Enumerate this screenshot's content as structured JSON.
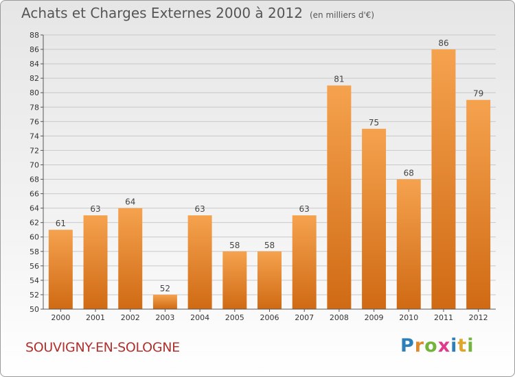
{
  "title": "Achats et Charges Externes 2000 à 2012",
  "subtitle": "(en milliers d'€)",
  "city": "SOUVIGNY-EN-SOLOGNE",
  "logo": "Proxiti",
  "colors": {
    "bar_top": "#f5a24e",
    "bar_bottom": "#d06a14",
    "city": "#b0312e",
    "grid": "#c8c8c8"
  },
  "chart_data": {
    "type": "bar",
    "title": "Achats et Charges Externes 2000 à 2012",
    "subtitle": "(en milliers d'€)",
    "categories": [
      "2000",
      "2001",
      "2002",
      "2003",
      "2004",
      "2005",
      "2006",
      "2007",
      "2008",
      "2009",
      "2010",
      "2011",
      "2012"
    ],
    "values": [
      61,
      63,
      64,
      52,
      63,
      58,
      58,
      63,
      81,
      75,
      68,
      86,
      79
    ],
    "xlabel": "",
    "ylabel": "",
    "ylim": [
      50,
      88
    ],
    "yticks": [
      50,
      52,
      54,
      56,
      58,
      60,
      62,
      64,
      66,
      68,
      70,
      72,
      74,
      76,
      78,
      80,
      82,
      84,
      86,
      88
    ],
    "grid": true,
    "data_labels": true
  }
}
